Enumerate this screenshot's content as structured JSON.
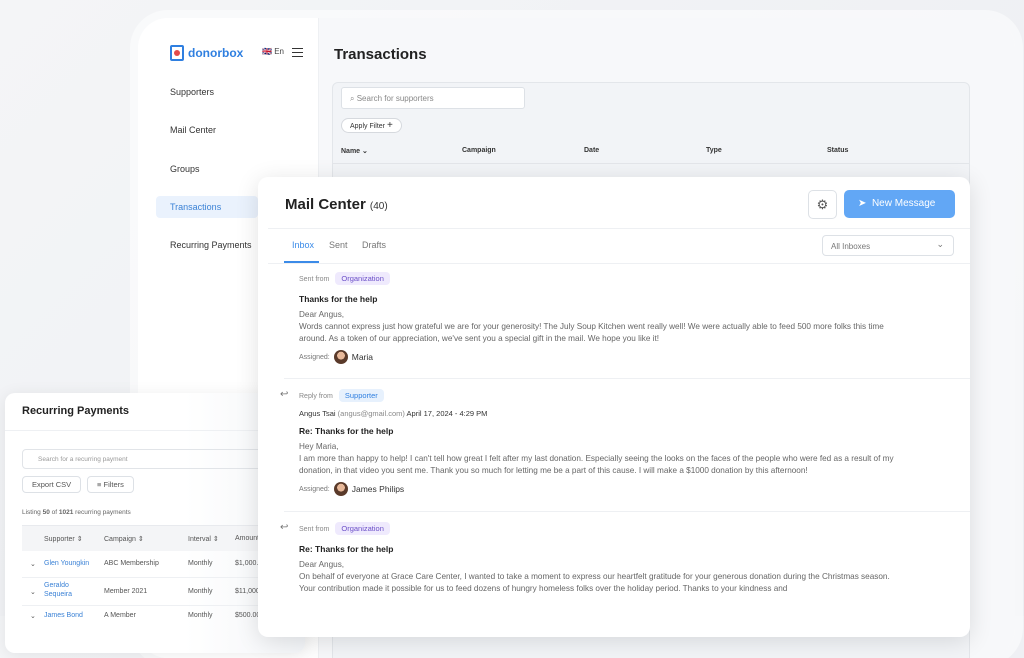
{
  "brand": {
    "name": "donorbox",
    "lang": "En"
  },
  "sidebar": {
    "items": [
      {
        "label": "Supporters"
      },
      {
        "label": "Mail Center"
      },
      {
        "label": "Groups"
      },
      {
        "label": "Transactions",
        "active": true
      },
      {
        "label": "Recurring Payments"
      }
    ]
  },
  "transactions": {
    "title": "Transactions",
    "search_placeholder": "Search for supporters",
    "apply_filter": "Apply Filter",
    "columns": [
      "Name",
      "Campaign",
      "Date",
      "Type",
      "Status"
    ]
  },
  "mail": {
    "title": "Mail Center",
    "count": "(40)",
    "new_message": "New Message",
    "tabs": [
      {
        "label": "Inbox",
        "active": true
      },
      {
        "label": "Sent"
      },
      {
        "label": "Drafts"
      }
    ],
    "filter": "All Inboxes",
    "assigned_label": "Assigned:",
    "messages": [
      {
        "from_label": "Sent from",
        "badge": "Organization",
        "subject": "Thanks for the help",
        "greeting": "Dear Angus,",
        "body": "Words cannot express just how grateful we are for your generosity! The July Soup Kitchen went really well! We were actually able to feed 500 more folks this time around. As a token of our appreciation, we've sent you a special gift in the mail. We hope you like it!",
        "assigned": "Maria"
      },
      {
        "from_label": "Reply from",
        "badge": "Supporter",
        "sender": "Angus Tsai",
        "email": "(angus@gmail.com)",
        "datetime": "April 17, 2024 - 4:29 PM",
        "subject": "Re: Thanks for the help",
        "greeting": "Hey Maria,",
        "body": "I am more than happy to help! I can't tell how great I felt after my last donation. Especially seeing the looks on the faces of the people who were fed as a result of my donation, in that video you sent me. Thank you so much for letting me be a part of this cause. I will make a $1000 donation by this afternoon!",
        "assigned": "James Philips"
      },
      {
        "from_label": "Sent from",
        "badge": "Organization",
        "subject": "Re: Thanks for the help",
        "greeting": "Dear Angus,",
        "body": "On behalf of everyone at Grace Care Center, I wanted to take a moment to express our heartfelt gratitude for your generous donation during the Christmas season.",
        "body2": "Your contribution made it possible for us to feed dozens of hungry homeless folks over the holiday period. Thanks to your kindness and"
      }
    ]
  },
  "recurring": {
    "title": "Recurring Payments",
    "search_placeholder": "Search for a recurring payment",
    "export": "Export CSV",
    "filters": "Filters",
    "listing_pre": "Listing",
    "listing_n": "50",
    "listing_of": "of",
    "listing_total": "1021",
    "listing_post": "recurring payments",
    "columns": [
      "Supporter",
      "Campaign",
      "Interval",
      "Amount"
    ],
    "rows": [
      {
        "supporter": "Glen Youngkin",
        "campaign": "ABC Membership",
        "interval": "Monthly",
        "amount": "$1,000."
      },
      {
        "supporter": "Geraldo Sequeira",
        "campaign": "Member 2021",
        "interval": "Monthly",
        "amount": "$11,000"
      },
      {
        "supporter": "James Bond",
        "campaign": "A Member",
        "interval": "Monthly",
        "amount": "$500.00"
      }
    ]
  }
}
